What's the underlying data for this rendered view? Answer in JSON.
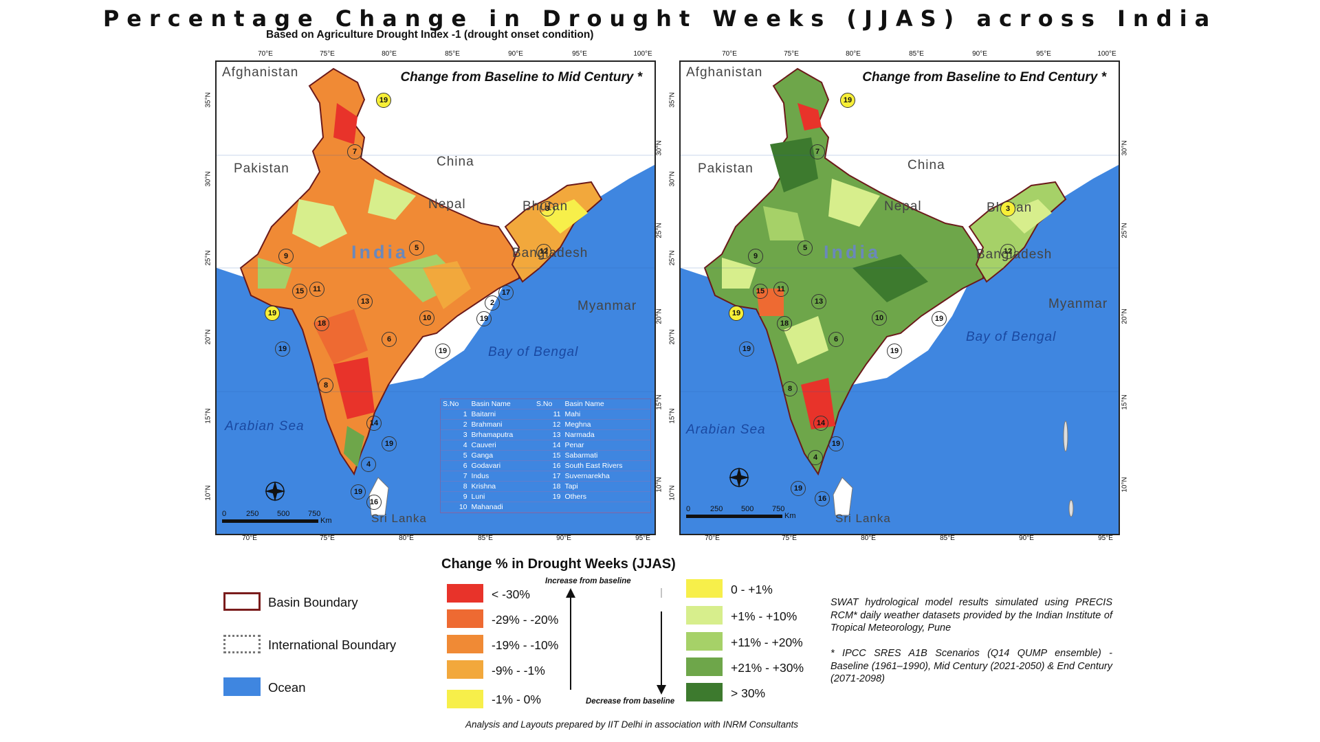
{
  "title": "Percentage Change in Drought Weeks (JJAS) across India",
  "subtitle": "Based on Agriculture Drought Index -1 (drought onset condition)",
  "panels": [
    {
      "title": "Change from Baseline to Mid Century *"
    },
    {
      "title": "Change from Baseline to End Century *"
    }
  ],
  "axes": {
    "top_lon": [
      "70°E",
      "75°E",
      "80°E",
      "85°E",
      "90°E",
      "95°E",
      "100°E"
    ],
    "bottom_lon": [
      "70°E",
      "75°E",
      "80°E",
      "85°E",
      "90°E",
      "95°E"
    ],
    "left_lat": [
      "35°N",
      "30°N",
      "25°N",
      "20°N",
      "15°N",
      "10°N"
    ],
    "right_lat": [
      "30°N",
      "25°N",
      "20°N",
      "15°N",
      "10°N"
    ]
  },
  "places": {
    "afghanistan": "Afghanistan",
    "pakistan": "Pakistan",
    "china": "China",
    "nepal": "Nepal",
    "bhutan": "Bhutan",
    "india_left": "India",
    "india_right": "India",
    "bangladesh": "Bangladesh",
    "myanmar": "Myanmar",
    "bay": "Bay of Bengal",
    "arabian": "Arabian Sea",
    "srilanka": "Sri Lanka"
  },
  "scale": {
    "ticks": [
      "0",
      "250",
      "500",
      "750"
    ],
    "unit": "Km"
  },
  "basin_table": {
    "headers": [
      "S.No",
      "Basin Name",
      "S.No",
      "Basin Name"
    ],
    "rows": [
      [
        "1",
        "Baitarni",
        "11",
        "Mahi"
      ],
      [
        "2",
        "Brahmani",
        "12",
        "Meghna"
      ],
      [
        "3",
        "Brhamaputra",
        "13",
        "Narmada"
      ],
      [
        "4",
        "Cauveri",
        "14",
        "Penar"
      ],
      [
        "5",
        "Ganga",
        "15",
        "Sabarmati"
      ],
      [
        "6",
        "Godavari",
        "16",
        "South East Rivers"
      ],
      [
        "7",
        "Indus",
        "17",
        "Suvernarekha"
      ],
      [
        "8",
        "Krishna",
        "18",
        "Tapi"
      ],
      [
        "9",
        "Luni",
        "19",
        "Others"
      ],
      [
        "10",
        "Mahanadi",
        "",
        ""
      ]
    ]
  },
  "legend": {
    "title": "Change % in Drought Weeks (JJAS)",
    "increase_label": "Increase from baseline",
    "decrease_label": "Decrease from baseline",
    "left": [
      {
        "label": "< -30%",
        "color": "#e8332a"
      },
      {
        "label": "-29% - -20%",
        "color": "#ee6a32"
      },
      {
        "label": "-19% - -10%",
        "color": "#f08a35"
      },
      {
        "label": "-9% - -1%",
        "color": "#f2a83c"
      },
      {
        "label": "-1% - 0%",
        "color": "#f7ef4a"
      }
    ],
    "right": [
      {
        "label": "0 - +1%",
        "color": "#f7ef4a"
      },
      {
        "label": "+1% - +10%",
        "color": "#d7ee8c"
      },
      {
        "label": "+11% - +20%",
        "color": "#a6d168"
      },
      {
        "label": "+21% - +30%",
        "color": "#6ea64a"
      },
      {
        "label": "> 30%",
        "color": "#3d7a2e"
      }
    ]
  },
  "symbols": [
    {
      "label": "Basin Boundary"
    },
    {
      "label": "International Boundary"
    },
    {
      "label": "Ocean"
    }
  ],
  "notes": {
    "swat": "SWAT hydrological model results simulated using PRECIS RCM* daily weather datasets provided by the Indian Institute of Tropical Meteorology, Pune",
    "ipcc": "* IPCC SRES A1B Scenarios (Q14 QUMP ensemble) - Baseline (1961–1990), Mid Century (2021-2050) & End Century (2071-2098)"
  },
  "credit": "Analysis and Layouts prepared by IIT Delhi in association with INRM Consultants"
}
